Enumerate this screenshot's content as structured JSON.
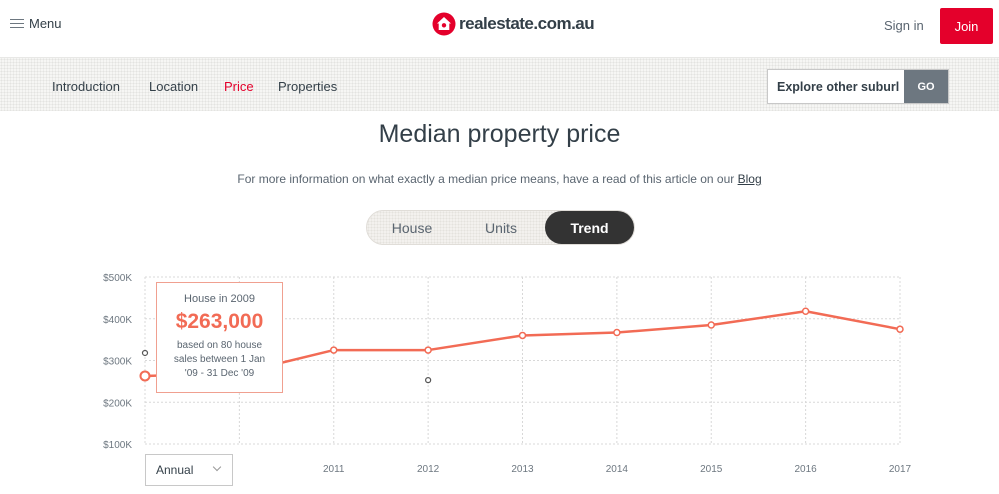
{
  "header": {
    "menu_label": "Menu",
    "logo_text": "realestate.com.au",
    "signin_label": "Sign in",
    "join_label": "Join",
    "brand_color": "#e4002b"
  },
  "subnav": {
    "items": [
      {
        "label": "Introduction",
        "active": false
      },
      {
        "label": "Location",
        "active": false
      },
      {
        "label": "Price",
        "active": true
      },
      {
        "label": "Properties",
        "active": false
      }
    ],
    "explore_value": "Explore other suburl",
    "go_label": "GO"
  },
  "main": {
    "title": "Median property price",
    "subtitle_text": "For more information on what exactly a median price means, have a read of this article on our ",
    "subtitle_link": "Blog",
    "toggle": [
      {
        "label": "House",
        "active": false
      },
      {
        "label": "Units",
        "active": false
      },
      {
        "label": "Trend",
        "active": true
      }
    ]
  },
  "tooltip": {
    "title": "House in 2009",
    "price": "$263,000",
    "desc": "based on 80 house sales between 1 Jan '09 - 31 Dec '09"
  },
  "period_select": {
    "value": "Annual"
  },
  "chart_data": {
    "type": "line",
    "title": "",
    "xlabel": "",
    "ylabel": "",
    "y_tick_labels": [
      "$100K",
      "$200K",
      "$300K",
      "$400K",
      "$500K"
    ],
    "y_ticks": [
      100000,
      200000,
      300000,
      400000,
      500000
    ],
    "ylim": [
      100000,
      500000
    ],
    "x_tick_labels": [
      "2011",
      "2012",
      "2013",
      "2014",
      "2015",
      "2016",
      "2017"
    ],
    "x_ticks": [
      2011,
      2012,
      2013,
      2014,
      2015,
      2016,
      2017
    ],
    "xlim": [
      2009,
      2017
    ],
    "grid": true,
    "series": [
      {
        "x": [
          2009,
          2010,
          2011,
          2012,
          2013,
          2014,
          2015,
          2016,
          2017
        ],
        "values": [
          263000,
          270000,
          325000,
          325000,
          360000,
          367000,
          385000,
          418000,
          375000
        ],
        "color": "#f26b55"
      }
    ],
    "extra_points": [
      {
        "x": 2009,
        "y": 318000
      },
      {
        "x": 2012,
        "y": 253000
      }
    ]
  }
}
